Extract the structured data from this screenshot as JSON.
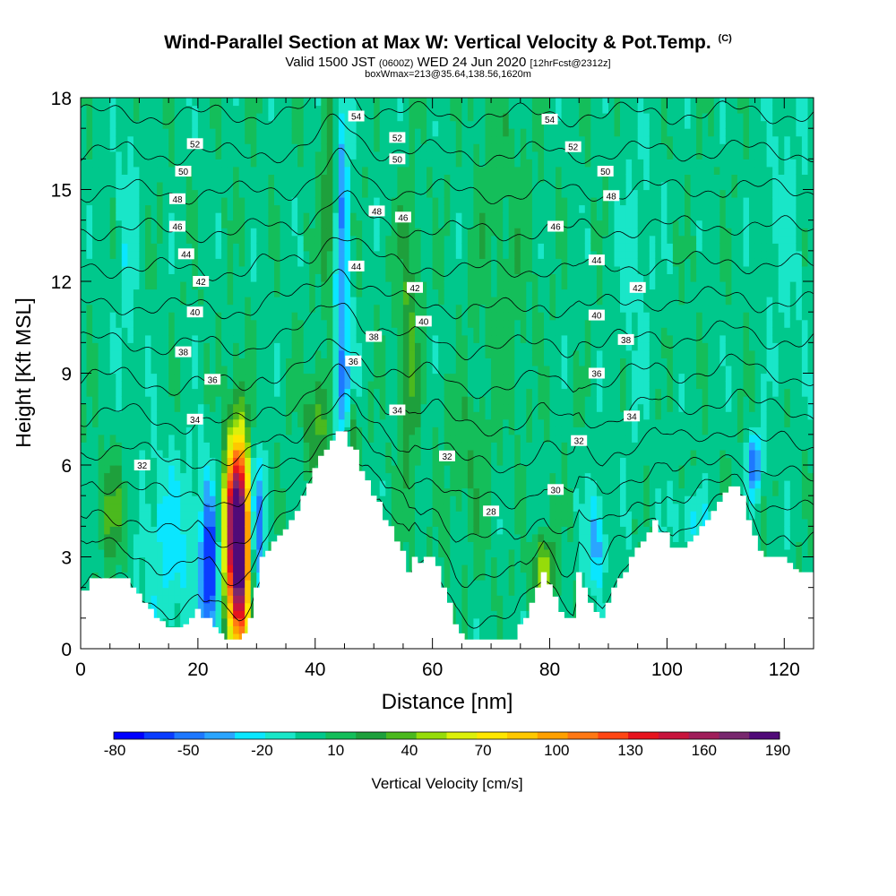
{
  "chart_data": {
    "type": "heatmap",
    "title_main": "Wind-Parallel Section at Max W: Vertical Velocity & Pot.Temp.",
    "title_mark": "(C)",
    "subtitle_a": "Valid 1500 JST",
    "subtitle_utc": "(0600Z)",
    "subtitle_b": "WED 24 Jun 2020",
    "subtitle_fcst": "[12hrFcst@2312z]",
    "info_line": "boxWmax=213@35.64,138.56,1620m",
    "xlabel": "Distance [nm]",
    "ylabel": "Height [Kft MSL]",
    "xlim": [
      0,
      125
    ],
    "ylim": [
      0,
      18
    ],
    "x_ticks": [
      0,
      20,
      40,
      60,
      80,
      100,
      120
    ],
    "y_ticks": [
      0,
      3,
      6,
      9,
      12,
      15,
      18
    ],
    "colorbar": {
      "label": "Vertical Velocity [cm/s]",
      "tick_labels": [
        -80,
        -50,
        -20,
        10,
        40,
        70,
        100,
        130,
        160,
        190
      ],
      "colors": [
        "#0000ff",
        "#0a3cff",
        "#1e78ff",
        "#2aa5ff",
        "#0ae6ff",
        "#19e6c8",
        "#00c88c",
        "#14be5a",
        "#1ea03c",
        "#4bb91e",
        "#96dc0a",
        "#dcf00a",
        "#ffe600",
        "#ffc800",
        "#ffa000",
        "#ff7814",
        "#ff4614",
        "#e6141e",
        "#c8143c",
        "#a01e5a",
        "#78286e",
        "#500a78"
      ]
    },
    "terrain": {
      "x": [
        0,
        1,
        2,
        3,
        4,
        5,
        6,
        7,
        8,
        9,
        10,
        11,
        12,
        13,
        14,
        15,
        16,
        17,
        18,
        19,
        20,
        21,
        22,
        23,
        24,
        25,
        26,
        27,
        28,
        29,
        30,
        31,
        32,
        33,
        34,
        35,
        36,
        37,
        38,
        39,
        40,
        41,
        42,
        43,
        44,
        45,
        46,
        47,
        48,
        49,
        50,
        51,
        52,
        53,
        54,
        55,
        56,
        57,
        58,
        59,
        60,
        61,
        62,
        63,
        64,
        65,
        66,
        67,
        68,
        69,
        70,
        71,
        72,
        73,
        74,
        75,
        76,
        77,
        78,
        79,
        80,
        81,
        82,
        83,
        84,
        85,
        86,
        87,
        88,
        89,
        90,
        91,
        92,
        93,
        94,
        95,
        96,
        97,
        98,
        99,
        100,
        101,
        102,
        103,
        104,
        105,
        106,
        107,
        108,
        109,
        110,
        111,
        112,
        113,
        114,
        115,
        116,
        117,
        118,
        119,
        120,
        121,
        122,
        123,
        124,
        125
      ],
      "height_kft": [
        1.9,
        1.9,
        2.3,
        2.3,
        2.3,
        2.3,
        2.3,
        2.3,
        2.3,
        2.0,
        1.8,
        1.5,
        1.3,
        1.0,
        0.9,
        0.7,
        0.7,
        0.7,
        0.8,
        1.0,
        1.3,
        1.0,
        1.0,
        0.7,
        0.5,
        0.3,
        0.3,
        0.3,
        0.5,
        1.0,
        2.0,
        3.0,
        3.2,
        3.5,
        3.7,
        3.9,
        4.2,
        4.5,
        5.0,
        5.4,
        5.9,
        6.3,
        6.5,
        6.8,
        7.1,
        7.1,
        6.6,
        6.5,
        5.8,
        5.5,
        5.0,
        4.8,
        4.2,
        4.0,
        3.5,
        3.2,
        2.5,
        3.0,
        2.8,
        3.0,
        3.0,
        2.7,
        2.0,
        1.5,
        0.8,
        0.5,
        0.3,
        0.3,
        0.3,
        0.3,
        0.3,
        0.3,
        0.3,
        0.3,
        0.3,
        0.8,
        1.0,
        1.5,
        2.0,
        2.5,
        2.1,
        1.7,
        1.2,
        1.0,
        1.0,
        2.5,
        2.0,
        1.5,
        1.2,
        1.0,
        1.5,
        2.0,
        2.3,
        2.5,
        3.0,
        3.3,
        3.5,
        3.8,
        4.2,
        3.8,
        3.8,
        3.3,
        3.3,
        3.3,
        3.5,
        3.7,
        4.0,
        4.2,
        4.5,
        4.8,
        5.1,
        5.3,
        5.3,
        5.0,
        4.2,
        3.7,
        3.2,
        3.0,
        3.0,
        3.0,
        3.0,
        2.8,
        2.6,
        2.5,
        2.5,
        2.5
      ]
    },
    "w_features": [
      {
        "x": 27,
        "z": 3.2,
        "sx": 1.4,
        "sz": 2.6,
        "w": 185
      },
      {
        "x": 26,
        "z": 4.2,
        "sx": 1.6,
        "sz": 1.6,
        "w": 60
      },
      {
        "x": 22,
        "z": 2.5,
        "sx": 1.2,
        "sz": 2.0,
        "w": -70
      },
      {
        "x": 30,
        "z": 4.0,
        "sx": 1.0,
        "sz": 1.8,
        "w": -60
      },
      {
        "x": 15,
        "z": 3.5,
        "sx": 4.0,
        "sz": 2.2,
        "w": -25
      },
      {
        "x": 44.5,
        "z": 13.5,
        "sx": 1.0,
        "sz": 4.5,
        "w": -45
      },
      {
        "x": 45,
        "z": 8.0,
        "sx": 1.2,
        "sz": 1.5,
        "w": -35
      },
      {
        "x": 42.5,
        "z": 14.5,
        "sx": 1.0,
        "sz": 2.5,
        "w": 35
      },
      {
        "x": 46,
        "z": 7.0,
        "sx": 1.0,
        "sz": 1.0,
        "w": 40
      },
      {
        "x": 40.5,
        "z": 7.5,
        "sx": 1.5,
        "sz": 1.2,
        "w": 35
      },
      {
        "x": 56,
        "z": 10.0,
        "sx": 1.2,
        "sz": 3.5,
        "w": 30
      },
      {
        "x": 79,
        "z": 2.6,
        "sx": 1.2,
        "sz": 0.8,
        "w": 55
      },
      {
        "x": 88,
        "z": 3.5,
        "sx": 1.2,
        "sz": 1.2,
        "w": -40
      },
      {
        "x": 115,
        "z": 6.0,
        "sx": 0.8,
        "sz": 0.7,
        "w": -60
      },
      {
        "x": 104,
        "z": 4.2,
        "sx": 2.0,
        "sz": 0.7,
        "w": -25
      },
      {
        "x": 6,
        "z": 4.5,
        "sx": 2.0,
        "sz": 1.2,
        "w": 30
      },
      {
        "x": 8,
        "z": 13.0,
        "sx": 1.5,
        "sz": 4.0,
        "w": -15
      },
      {
        "x": 66,
        "z": 6.0,
        "sx": 3.0,
        "sz": 2.0,
        "w": 12
      },
      {
        "x": 95,
        "z": 12.0,
        "sx": 2.5,
        "sz": 4.0,
        "w": -12
      },
      {
        "x": 120,
        "z": 14.0,
        "sx": 3.0,
        "sz": 4.0,
        "w": -12
      },
      {
        "x": 72,
        "z": 14.0,
        "sx": 4.0,
        "sz": 5.0,
        "w": 10
      }
    ],
    "theta_contours": [
      28,
      30,
      32,
      34,
      36,
      38,
      40,
      42,
      44,
      46,
      48,
      50,
      52,
      54
    ],
    "theta_labels": [
      {
        "text": "54",
        "x": 47,
        "z": 17.4
      },
      {
        "text": "52",
        "x": 19.5,
        "z": 16.5
      },
      {
        "text": "52",
        "x": 54,
        "z": 16.7
      },
      {
        "text": "50",
        "x": 17.5,
        "z": 15.6
      },
      {
        "text": "50",
        "x": 54,
        "z": 16.0
      },
      {
        "text": "48",
        "x": 16.5,
        "z": 14.7
      },
      {
        "text": "48",
        "x": 50.5,
        "z": 14.3
      },
      {
        "text": "46",
        "x": 16.5,
        "z": 13.8
      },
      {
        "text": "46",
        "x": 55,
        "z": 14.1
      },
      {
        "text": "44",
        "x": 18,
        "z": 12.9
      },
      {
        "text": "44",
        "x": 47,
        "z": 12.5
      },
      {
        "text": "42",
        "x": 20.5,
        "z": 12.0
      },
      {
        "text": "42",
        "x": 57,
        "z": 11.8
      },
      {
        "text": "40",
        "x": 19.5,
        "z": 11.0
      },
      {
        "text": "40",
        "x": 58.5,
        "z": 10.7
      },
      {
        "text": "38",
        "x": 17.5,
        "z": 9.7
      },
      {
        "text": "38",
        "x": 50,
        "z": 10.2
      },
      {
        "text": "36",
        "x": 22.5,
        "z": 8.8
      },
      {
        "text": "36",
        "x": 46.5,
        "z": 9.4
      },
      {
        "text": "34",
        "x": 19.5,
        "z": 7.5
      },
      {
        "text": "34",
        "x": 54,
        "z": 7.8
      },
      {
        "text": "32",
        "x": 10.5,
        "z": 6.0
      },
      {
        "text": "32",
        "x": 62.5,
        "z": 6.3
      },
      {
        "text": "28",
        "x": 70,
        "z": 4.5
      },
      {
        "text": "30",
        "x": 81,
        "z": 5.2
      },
      {
        "text": "32",
        "x": 85,
        "z": 6.8
      },
      {
        "text": "34",
        "x": 94,
        "z": 7.6
      },
      {
        "text": "36",
        "x": 88,
        "z": 9.0
      },
      {
        "text": "38",
        "x": 93,
        "z": 10.1
      },
      {
        "text": "40",
        "x": 88,
        "z": 10.9
      },
      {
        "text": "42",
        "x": 95,
        "z": 11.8
      },
      {
        "text": "44",
        "x": 88,
        "z": 12.7
      },
      {
        "text": "46",
        "x": 81,
        "z": 13.8
      },
      {
        "text": "48",
        "x": 90.5,
        "z": 14.8
      },
      {
        "text": "50",
        "x": 89.5,
        "z": 15.6
      },
      {
        "text": "52",
        "x": 84,
        "z": 16.4
      },
      {
        "text": "54",
        "x": 80,
        "z": 17.3
      }
    ]
  }
}
